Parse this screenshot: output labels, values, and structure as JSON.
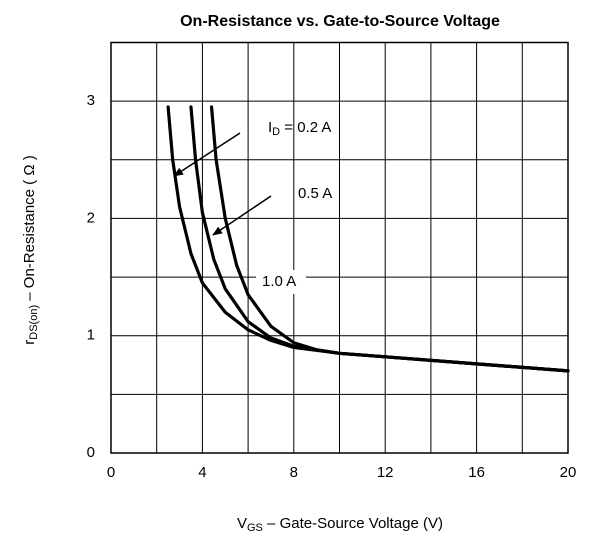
{
  "chart_data": {
    "type": "line",
    "title": "On-Resistance vs. Gate-to-Source Voltage",
    "x_label": [
      "V",
      "GS",
      " – Gate-Source Voltage (V)"
    ],
    "y_label": [
      "r",
      "DS(on)",
      " – On-Resistance ( Ω )"
    ],
    "id_label": [
      "I",
      "D",
      " = "
    ],
    "xlim": [
      0,
      20
    ],
    "ylim": [
      0,
      3.5
    ],
    "xticks": [
      0,
      4,
      8,
      12,
      16,
      20
    ],
    "yticks": [
      0,
      1,
      2,
      3
    ],
    "xgrid": [
      2,
      4,
      6,
      8,
      10,
      12,
      14,
      16,
      18
    ],
    "ygrid": [
      0.5,
      1,
      1.5,
      2,
      2.5,
      3
    ],
    "color": "#000000",
    "series": [
      {
        "name": "0.2 A",
        "x": [
          2.5,
          2.7,
          3,
          3.5,
          4,
          5,
          6,
          7,
          8,
          10,
          12,
          16,
          20
        ],
        "values": [
          2.95,
          2.5,
          2.1,
          1.7,
          1.45,
          1.2,
          1.05,
          0.96,
          0.9,
          0.85,
          0.82,
          0.76,
          0.7
        ]
      },
      {
        "name": "0.5 A",
        "x": [
          3.5,
          3.7,
          4,
          4.5,
          5,
          6,
          7,
          8,
          10,
          12,
          16,
          20
        ],
        "values": [
          2.95,
          2.5,
          2.05,
          1.65,
          1.4,
          1.12,
          0.98,
          0.91,
          0.85,
          0.82,
          0.76,
          0.7
        ]
      },
      {
        "name": "1.0 A",
        "x": [
          4.4,
          4.6,
          5,
          5.5,
          6,
          7,
          8,
          9,
          10,
          12,
          16,
          20
        ],
        "values": [
          2.95,
          2.5,
          2.0,
          1.6,
          1.35,
          1.08,
          0.94,
          0.88,
          0.85,
          0.82,
          0.76,
          0.7
        ]
      }
    ]
  }
}
